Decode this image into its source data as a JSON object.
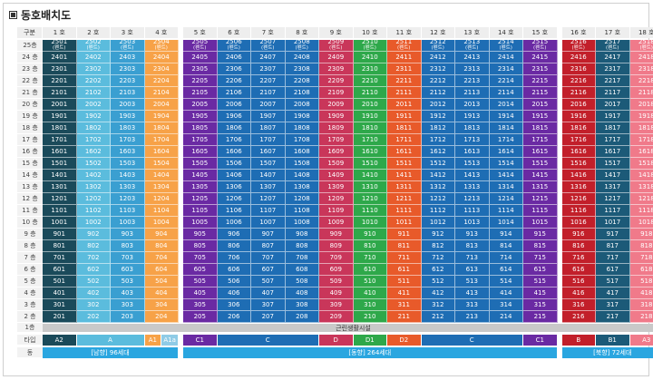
{
  "title": "동호배치도",
  "header_label": "구분",
  "columns": [
    "1 호",
    "2 호",
    "3 호",
    "4 호",
    "5 호",
    "6 호",
    "7 호",
    "8 호",
    "9 호",
    "10 호",
    "11 호",
    "12 호",
    "13 호",
    "14 호",
    "15 호",
    "16 호",
    "17 호",
    "18 호"
  ],
  "floors": [
    "25층",
    "24 층",
    "23 층",
    "22 층",
    "21 층",
    "20 층",
    "19 층",
    "18 층",
    "17 층",
    "16 층",
    "15 층",
    "14 층",
    "13 층",
    "12 층",
    "11 층",
    "10 층",
    "9 층",
    "8 층",
    "7 층",
    "6 층",
    "5 층",
    "4 층",
    "3 층",
    "2 층"
  ],
  "top_sub": "(펜트)",
  "floor1_label": "1층",
  "amenity_label": "근린생활시설",
  "type_label": "타입",
  "types": [
    {
      "label": "A2",
      "col_start": 1,
      "col_end": 1,
      "color": "#1a4a5a"
    },
    {
      "label": "A",
      "col_start": 2,
      "col_end": 3,
      "color": "#5bbcdd"
    },
    {
      "label": "A1",
      "col_start": 4,
      "col_end": 4,
      "color": "#f7a248"
    },
    {
      "label": "A1a",
      "col_start": 4,
      "col_end": 4,
      "color": "#8fcbe6"
    },
    {
      "label": "C1",
      "col_start": 5,
      "col_end": 5,
      "color": "#6a2aa3"
    },
    {
      "label": "C",
      "col_start": 6,
      "col_end": 8,
      "color": "#1e6db4"
    },
    {
      "label": "D",
      "col_start": 9,
      "col_end": 9,
      "color": "#c9365a"
    },
    {
      "label": "D1",
      "col_start": 10,
      "col_end": 10,
      "color": "#2ea84a"
    },
    {
      "label": "D2",
      "col_start": 11,
      "col_end": 11,
      "color": "#e85a2a"
    },
    {
      "label": "C",
      "col_start": 12,
      "col_end": 14,
      "color": "#1e6db4"
    },
    {
      "label": "C1",
      "col_start": 15,
      "col_end": 15,
      "color": "#6a2aa3"
    },
    {
      "label": "B",
      "col_start": 16,
      "col_end": 16,
      "color": "#c21f2a"
    },
    {
      "label": "B1",
      "col_start": 17,
      "col_end": 17,
      "color": "#1c5a78"
    },
    {
      "label": "A3",
      "col_start": 18,
      "col_end": 18,
      "color": "#f07a8a"
    }
  ],
  "building_label": "동",
  "buildings": [
    {
      "label": "[남향] 96세대",
      "col_start": 1,
      "col_end": 4
    },
    {
      "label": "[동향] 264세대",
      "col_start": 5,
      "col_end": 15
    },
    {
      "label": "[북향] 72세대",
      "col_start": 16,
      "col_end": 18
    }
  ],
  "col_colors": [
    "#1a4a5a",
    "#5bbcdd",
    "#3a9fd1",
    "#f7a248",
    "#6a2aa3",
    "#1e6db4",
    "#1e6db4",
    "#1e6db4",
    "#c9365a",
    "#2ea84a",
    "#e85a2a",
    "#1e6db4",
    "#1e6db4",
    "#1e6db4",
    "#6a2aa3",
    "#c21f2a",
    "#1c5a78",
    "#f07a8a"
  ],
  "bar_color": "#2aa6e0"
}
